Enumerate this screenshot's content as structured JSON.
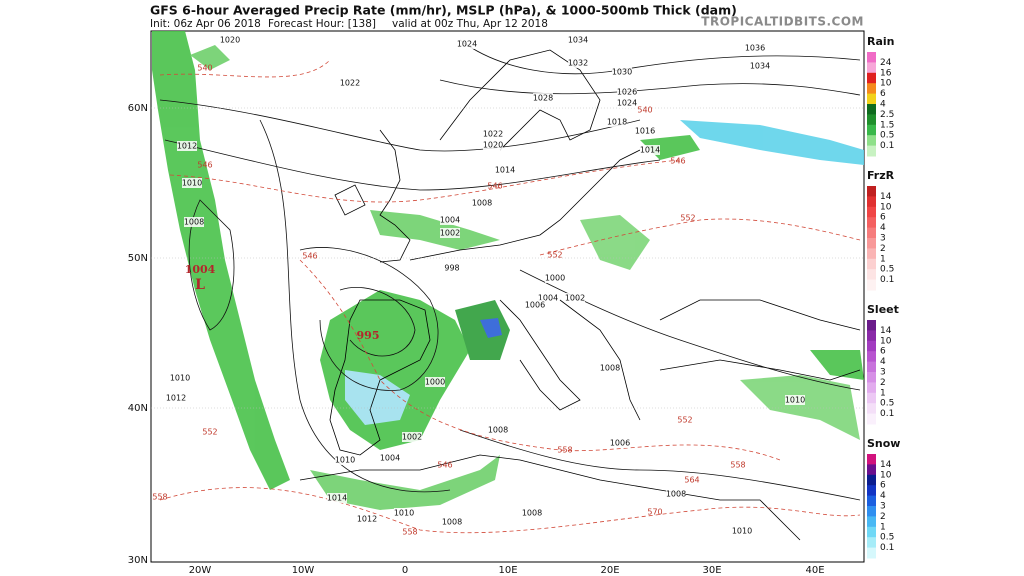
{
  "header": {
    "title": "GFS 6-hour Averaged Precip Rate (mm/hr), MSLP (hPa), & 1000-500mb Thick (dam)",
    "init": "Init: 06z Apr 06 2018",
    "forecast_hour": "Forecast Hour: [138]",
    "valid": "valid at 00z Thu, Apr 12 2018",
    "site": "TROPICALTIDBITS.COM"
  },
  "axes": {
    "latitudes": [
      "60N",
      "50N",
      "40N",
      "30N"
    ],
    "longitudes": [
      "20W",
      "10W",
      "0",
      "10E",
      "20E",
      "30E",
      "40E"
    ]
  },
  "legends": [
    {
      "title": "Rain",
      "labels": [
        "24",
        "16",
        "10",
        "6",
        "4",
        "2.5",
        "1.5",
        "0.5",
        "0.1"
      ]
    },
    {
      "title": "FrzR",
      "labels": [
        "14",
        "10",
        "6",
        "4",
        "3",
        "2",
        "1",
        "0.5",
        "0.1"
      ]
    },
    {
      "title": "Sleet",
      "labels": [
        "14",
        "10",
        "6",
        "4",
        "3",
        "2",
        "1",
        "0.5",
        "0.1"
      ]
    },
    {
      "title": "Snow",
      "labels": [
        "14",
        "10",
        "6",
        "4",
        "3",
        "2",
        "1",
        "0.5",
        "0.1"
      ]
    }
  ],
  "isobar_labels": [
    "1020",
    "1024",
    "1022",
    "1034",
    "1032",
    "1036",
    "1034",
    "1030",
    "1028",
    "1026",
    "1024",
    "1022",
    "1020",
    "1018",
    "1016",
    "1014",
    "1012",
    "1010",
    "1008",
    "1014",
    "1008",
    "1004",
    "1002",
    "998",
    "1000",
    "1004",
    "1002",
    "1006",
    "1008",
    "1010",
    "1012",
    "1004",
    "1002",
    "1000",
    "1010",
    "1014",
    "1012",
    "1010",
    "1008",
    "1008",
    "1006",
    "1008",
    "1010",
    "1008",
    "1010"
  ],
  "low_centers": [
    {
      "pressure": "1004",
      "symbol": "L"
    },
    {
      "pressure": "995"
    }
  ],
  "thickness_labels": [
    "540",
    "546",
    "546",
    "552",
    "552",
    "546",
    "552",
    "558",
    "558",
    "546",
    "558",
    "564",
    "570",
    "558",
    "552",
    "546",
    "540"
  ]
}
